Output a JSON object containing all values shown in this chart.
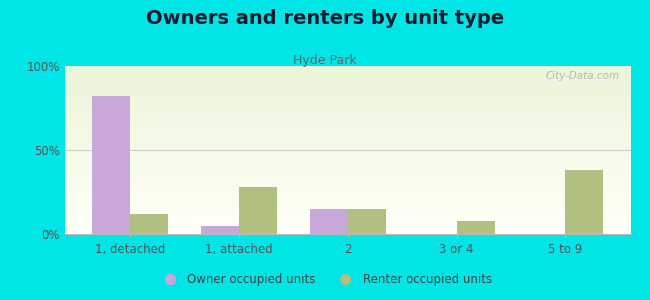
{
  "title": "Owners and renters by unit type",
  "subtitle": "Hyde Park",
  "categories": [
    "1, detached",
    "1, attached",
    "2",
    "3 or 4",
    "5 to 9"
  ],
  "owner_values": [
    82,
    5,
    15,
    0,
    0
  ],
  "renter_values": [
    12,
    28,
    15,
    8,
    38
  ],
  "owner_color": "#c8a8d8",
  "renter_color": "#b0c080",
  "background_color": "#00e5e5",
  "ylim": [
    0,
    100
  ],
  "yticks": [
    0,
    50,
    100
  ],
  "ytick_labels": [
    "0%",
    "50%",
    "100%"
  ],
  "bar_width": 0.35,
  "legend_owner": "Owner occupied units",
  "legend_renter": "Renter occupied units",
  "title_fontsize": 14,
  "subtitle_fontsize": 9,
  "watermark": "City-Data.com"
}
